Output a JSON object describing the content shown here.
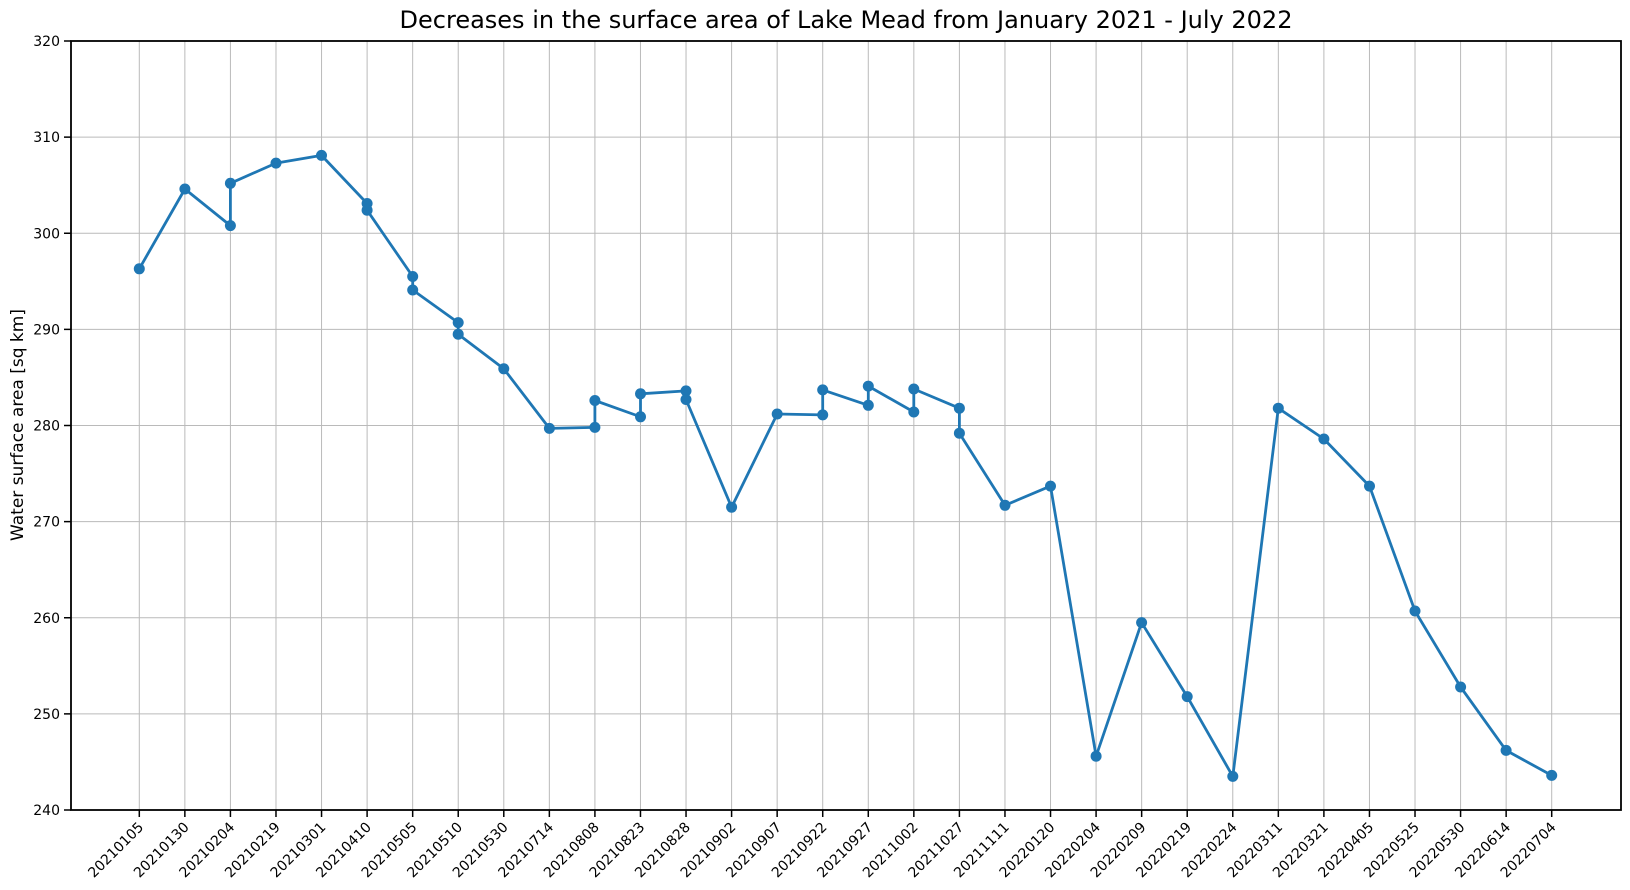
{
  "title": "Decreases in the surface area of Lake Mead from January 2021 - July 2022",
  "chart_data": {
    "type": "line",
    "title": "Decreases in the surface area of Lake Mead from January 2021 - July 2022",
    "xlabel": "",
    "ylabel": "Water surface area [sq km]",
    "ylim": [
      240,
      320
    ],
    "yticks": [
      240,
      250,
      260,
      270,
      280,
      290,
      300,
      310,
      320
    ],
    "grid": true,
    "legend": false,
    "line_color": "#1f77b4",
    "grid_color": "#bababa",
    "spine_color": "#000000",
    "marker": "circle",
    "x_tick_labels": [
      "20210105",
      "20210130",
      "20210204",
      "20210219",
      "20210301",
      "20210410",
      "20210505",
      "20210510",
      "20210530",
      "20210714",
      "20210808",
      "20210823",
      "20210828",
      "20210902",
      "20210907",
      "20210922",
      "20210927",
      "20211002",
      "20211027",
      "20211111",
      "20220120",
      "20220204",
      "20220209",
      "20220219",
      "20220224",
      "20220311",
      "20220321",
      "20220405",
      "20220525",
      "20220530",
      "20220614",
      "20220704"
    ],
    "series": [
      {
        "name": "Water surface area",
        "points": [
          [
            "20210105",
            296.3
          ],
          [
            "20210130",
            304.6
          ],
          [
            "20210204",
            300.8
          ],
          [
            "20210204",
            305.2
          ],
          [
            "20210219",
            307.3
          ],
          [
            "20210301",
            308.1
          ],
          [
            "20210410",
            303.1
          ],
          [
            "20210410",
            302.4
          ],
          [
            "20210505",
            295.5
          ],
          [
            "20210505",
            294.1
          ],
          [
            "20210510",
            290.7
          ],
          [
            "20210510",
            289.5
          ],
          [
            "20210530",
            285.9
          ],
          [
            "20210714",
            279.7
          ],
          [
            "20210808",
            279.8
          ],
          [
            "20210808",
            282.6
          ],
          [
            "20210823",
            280.9
          ],
          [
            "20210823",
            283.3
          ],
          [
            "20210828",
            283.6
          ],
          [
            "20210828",
            282.7
          ],
          [
            "20210902",
            271.5
          ],
          [
            "20210907",
            281.2
          ],
          [
            "20210922",
            281.1
          ],
          [
            "20210922",
            283.7
          ],
          [
            "20210927",
            282.1
          ],
          [
            "20210927",
            284.1
          ],
          [
            "20211002",
            281.4
          ],
          [
            "20211002",
            283.8
          ],
          [
            "20211027",
            281.8
          ],
          [
            "20211027",
            279.2
          ],
          [
            "20211111",
            271.7
          ],
          [
            "20220120",
            273.7
          ],
          [
            "20220204",
            245.6
          ],
          [
            "20220209",
            259.5
          ],
          [
            "20220219",
            251.8
          ],
          [
            "20220224",
            243.5
          ],
          [
            "20220311",
            281.8
          ],
          [
            "20220321",
            278.6
          ],
          [
            "20220405",
            273.7
          ],
          [
            "20220525",
            260.7
          ],
          [
            "20220530",
            252.8
          ],
          [
            "20220614",
            246.2
          ],
          [
            "20220704",
            243.6
          ]
        ]
      }
    ]
  }
}
